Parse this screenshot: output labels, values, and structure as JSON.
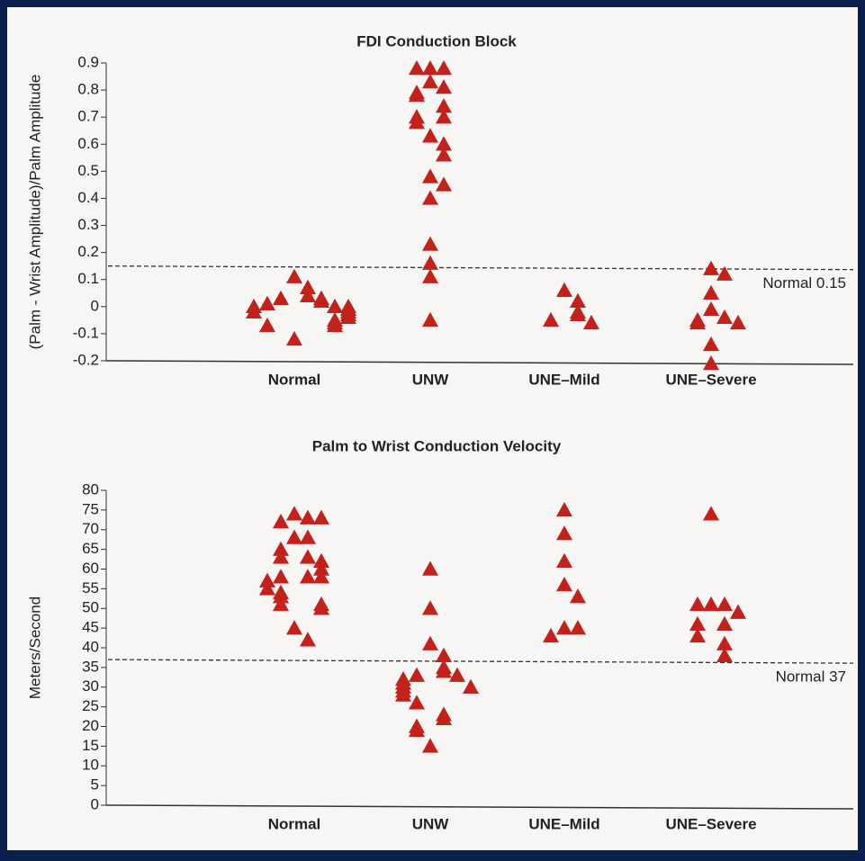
{
  "chart_data": [
    {
      "type": "strip",
      "title": "FDI Conduction Block",
      "y_label": "(Palm - Wrist Amplitude)/Palm Amplitude",
      "categories": [
        "Normal",
        "UNW",
        "UNE–Mild",
        "UNE–Severe"
      ],
      "values": [
        [
          0.11,
          0.07,
          0.04,
          0.03,
          0.03,
          0.02,
          0.01,
          0,
          0,
          0,
          -0.01,
          -0.02,
          -0.02,
          -0.03,
          -0.04,
          -0.05,
          -0.06,
          -0.07,
          -0.07,
          -0.12
        ],
        [
          0.88,
          0.88,
          0.88,
          0.83,
          0.81,
          0.79,
          0.78,
          0.74,
          0.7,
          0.7,
          0.68,
          0.63,
          0.6,
          0.56,
          0.48,
          0.45,
          0.4,
          0.23,
          0.16,
          0.11,
          -0.05
        ],
        [
          0.06,
          0.02,
          -0.02,
          -0.03,
          -0.05,
          -0.06
        ],
        [
          0.14,
          0.12,
          0.05,
          -0.01,
          -0.04,
          -0.05,
          -0.06,
          -0.06,
          -0.14,
          -0.21
        ]
      ],
      "color": "#c3221c",
      "ylim": [
        -0.2,
        0.9
      ],
      "yticks": [
        -0.2,
        -0.1,
        0,
        0.1,
        0.2,
        0.3,
        0.4,
        0.5,
        0.6,
        0.7,
        0.8,
        0.9
      ],
      "reference": {
        "value": 0.15,
        "label": "Normal 0.15"
      }
    },
    {
      "type": "strip",
      "title": "Palm to Wrist Conduction Velocity",
      "y_label": "Meters/Second",
      "categories": [
        "Normal",
        "UNW",
        "UNE–Mild",
        "UNE–Severe"
      ],
      "values": [
        [
          74,
          73,
          72,
          73,
          68,
          68,
          65,
          63,
          63,
          62,
          60,
          58,
          58,
          58,
          57,
          55,
          54,
          53,
          51,
          51,
          50,
          45,
          42
        ],
        [
          60,
          50,
          41,
          38,
          35,
          34,
          33,
          33,
          32,
          31,
          30,
          30,
          29,
          28,
          26,
          23,
          22,
          20,
          19,
          15
        ],
        [
          75,
          69,
          62,
          56,
          53,
          45,
          45,
          43
        ],
        [
          74,
          51,
          51,
          51,
          49,
          46,
          46,
          43,
          41,
          38
        ]
      ],
      "color": "#c3221c",
      "ylim": [
        0,
        80
      ],
      "yticks": [
        0,
        5,
        10,
        15,
        20,
        25,
        30,
        35,
        40,
        45,
        50,
        55,
        60,
        65,
        70,
        75,
        80
      ],
      "reference": {
        "value": 37,
        "label": "Normal 37"
      }
    }
  ]
}
